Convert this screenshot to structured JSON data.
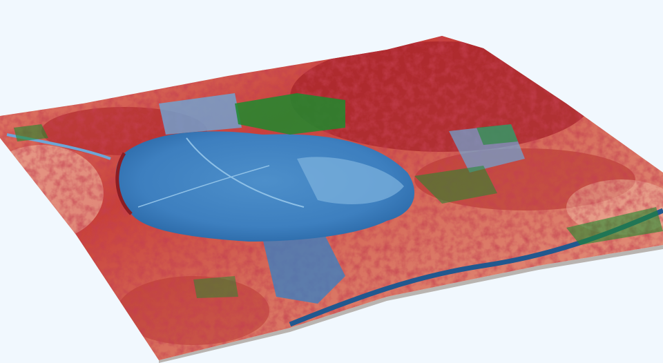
{
  "colors": {
    "background": "#f1f8fe",
    "hot_dark": "#9e1b22",
    "hot": "#c8403a",
    "warm": "#e8907a",
    "mild": "#f2c4b0",
    "cool": "#a9cde6",
    "water_light": "#5d9bcf",
    "water": "#3d7fbf",
    "water_deep": "#21588f",
    "vegetation": "#1f8a2e",
    "base_edge": "#b9b4b0"
  }
}
